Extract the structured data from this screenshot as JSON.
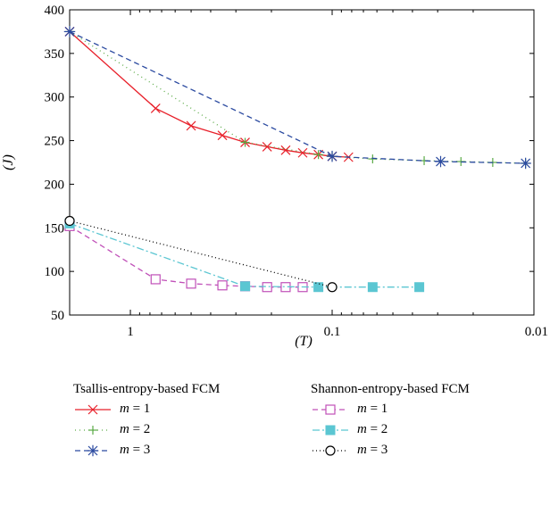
{
  "chart_data": {
    "type": "line",
    "xlabel": "(T)",
    "ylabel": "(J)",
    "xscale": "log",
    "xaxis_reversed": true,
    "xlim": [
      2.0,
      0.01
    ],
    "ylim": [
      50,
      400
    ],
    "xticks": [
      1,
      0.1,
      0.01
    ],
    "xtick_labels": [
      "1",
      "0.1",
      "0.01"
    ],
    "yticks": [
      50,
      100,
      150,
      200,
      250,
      300,
      350,
      400
    ],
    "ytick_labels": [
      "50",
      "100",
      "150",
      "200",
      "250",
      "300",
      "350",
      "400"
    ],
    "grid": false,
    "legend_groups": [
      {
        "title": "Tsallis-entropy-based FCM",
        "entries": [
          0,
          1,
          2
        ]
      },
      {
        "title": "Shannon-entropy-based FCM",
        "entries": [
          3,
          4,
          5
        ]
      }
    ],
    "series": [
      {
        "name": "m = 1",
        "color": "#e8202a",
        "dash": "",
        "marker": "x",
        "x": [
          2.0,
          0.75,
          0.5,
          0.35,
          0.27,
          0.21,
          0.17,
          0.14,
          0.117,
          0.1,
          0.083
        ],
        "y": [
          375,
          287,
          267,
          256,
          248,
          243,
          239,
          236,
          234,
          232,
          231
        ]
      },
      {
        "name": "m = 2",
        "color": "#5aaa46",
        "dash": "1,4",
        "marker": "plus",
        "x": [
          2.0,
          0.27,
          0.117,
          0.1,
          0.063,
          0.035,
          0.023,
          0.016,
          0.011
        ],
        "y": [
          375,
          248,
          234,
          232,
          229,
          227,
          226,
          225,
          224
        ]
      },
      {
        "name": "m = 3",
        "color": "#2b4aa0",
        "dash": "6,4",
        "marker": "star",
        "x": [
          2.0,
          0.1,
          0.029,
          0.011
        ],
        "y": [
          375,
          232,
          226,
          224
        ]
      },
      {
        "name": "m = 1",
        "color": "#c050b8",
        "dash": "6,4",
        "marker": "square-open",
        "x": [
          2.0,
          0.75,
          0.5,
          0.35,
          0.27,
          0.21,
          0.17,
          0.14
        ],
        "y": [
          152,
          91,
          86,
          84,
          83,
          82,
          82,
          82
        ]
      },
      {
        "name": "m = 2",
        "color": "#5bc6d2",
        "dash": "8,3,2,3",
        "marker": "square-filled",
        "x": [
          2.0,
          0.27,
          0.117,
          0.063,
          0.037
        ],
        "y": [
          155,
          83,
          82,
          82,
          82
        ]
      },
      {
        "name": "m = 3",
        "color": "#000000",
        "dash": "1,3",
        "marker": "circle-open",
        "x": [
          2.0,
          0.1
        ],
        "y": [
          158,
          82
        ]
      }
    ]
  }
}
